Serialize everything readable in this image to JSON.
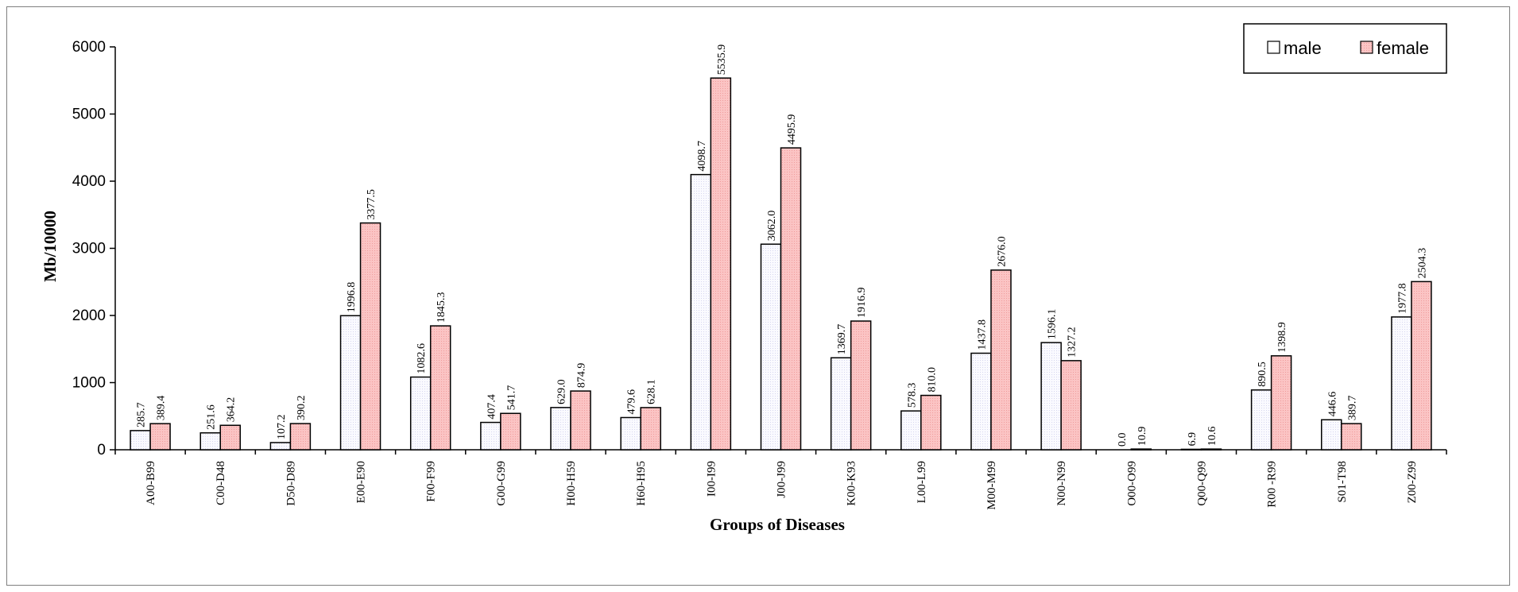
{
  "chart_data": {
    "type": "bar",
    "xlabel": "Groups of Diseases",
    "ylabel": "Mb/10000",
    "ylim": [
      0,
      6000
    ],
    "yticks": [
      0,
      1000,
      2000,
      3000,
      4000,
      5000,
      6000
    ],
    "legend_position": "top-right",
    "grid": false,
    "categories": [
      "A00-B99",
      "C00-D48",
      "D50-D89",
      "E00-E90",
      "F00-F99",
      "G00-G99",
      "H00-H59",
      "H60-H95",
      "I00-I99",
      "J00-J99",
      "K00-K93",
      "L00-L99",
      "M00-M99",
      "N00-N99",
      "O00-O99",
      "Q00-Q99",
      "R00 -R99",
      "S01-T98",
      "Z00-Z99"
    ],
    "series": [
      {
        "name": "male",
        "color": "#f4f4fb",
        "values": [
          285.7,
          251.6,
          107.2,
          1996.8,
          1082.6,
          407.4,
          629.0,
          479.6,
          4098.7,
          3062.0,
          1369.7,
          578.3,
          1437.8,
          1596.1,
          0.0,
          6.9,
          890.5,
          446.6,
          1977.8
        ],
        "labels": [
          "285.7",
          "251.6",
          "107.2",
          "1996.8",
          "1082.6",
          "407.4",
          "629.0",
          "479.6",
          "4098.7",
          "3062.0",
          "1369.7",
          "578.3",
          "1437.8",
          "1596.1",
          "0.0",
          "6.9",
          "890.5",
          "446.6",
          "1977.8"
        ]
      },
      {
        "name": "female",
        "color": "#f7b6b6",
        "values": [
          389.4,
          364.2,
          390.2,
          3377.5,
          1845.3,
          541.7,
          874.9,
          628.1,
          5535.9,
          4495.9,
          1916.9,
          810.0,
          2676.0,
          1327.2,
          10.9,
          10.6,
          1398.9,
          389.7,
          2504.3
        ],
        "labels": [
          "389.4",
          "364.2",
          "390.2",
          "3377.5",
          "1845.3",
          "541.7",
          "874.9",
          "628.1",
          "5535.9",
          "4495.9",
          "1916.9",
          "810.0",
          "2676.0",
          "1327.2",
          "10.9",
          "10.6",
          "1398.9",
          "389.7",
          "2504.3"
        ]
      }
    ]
  }
}
